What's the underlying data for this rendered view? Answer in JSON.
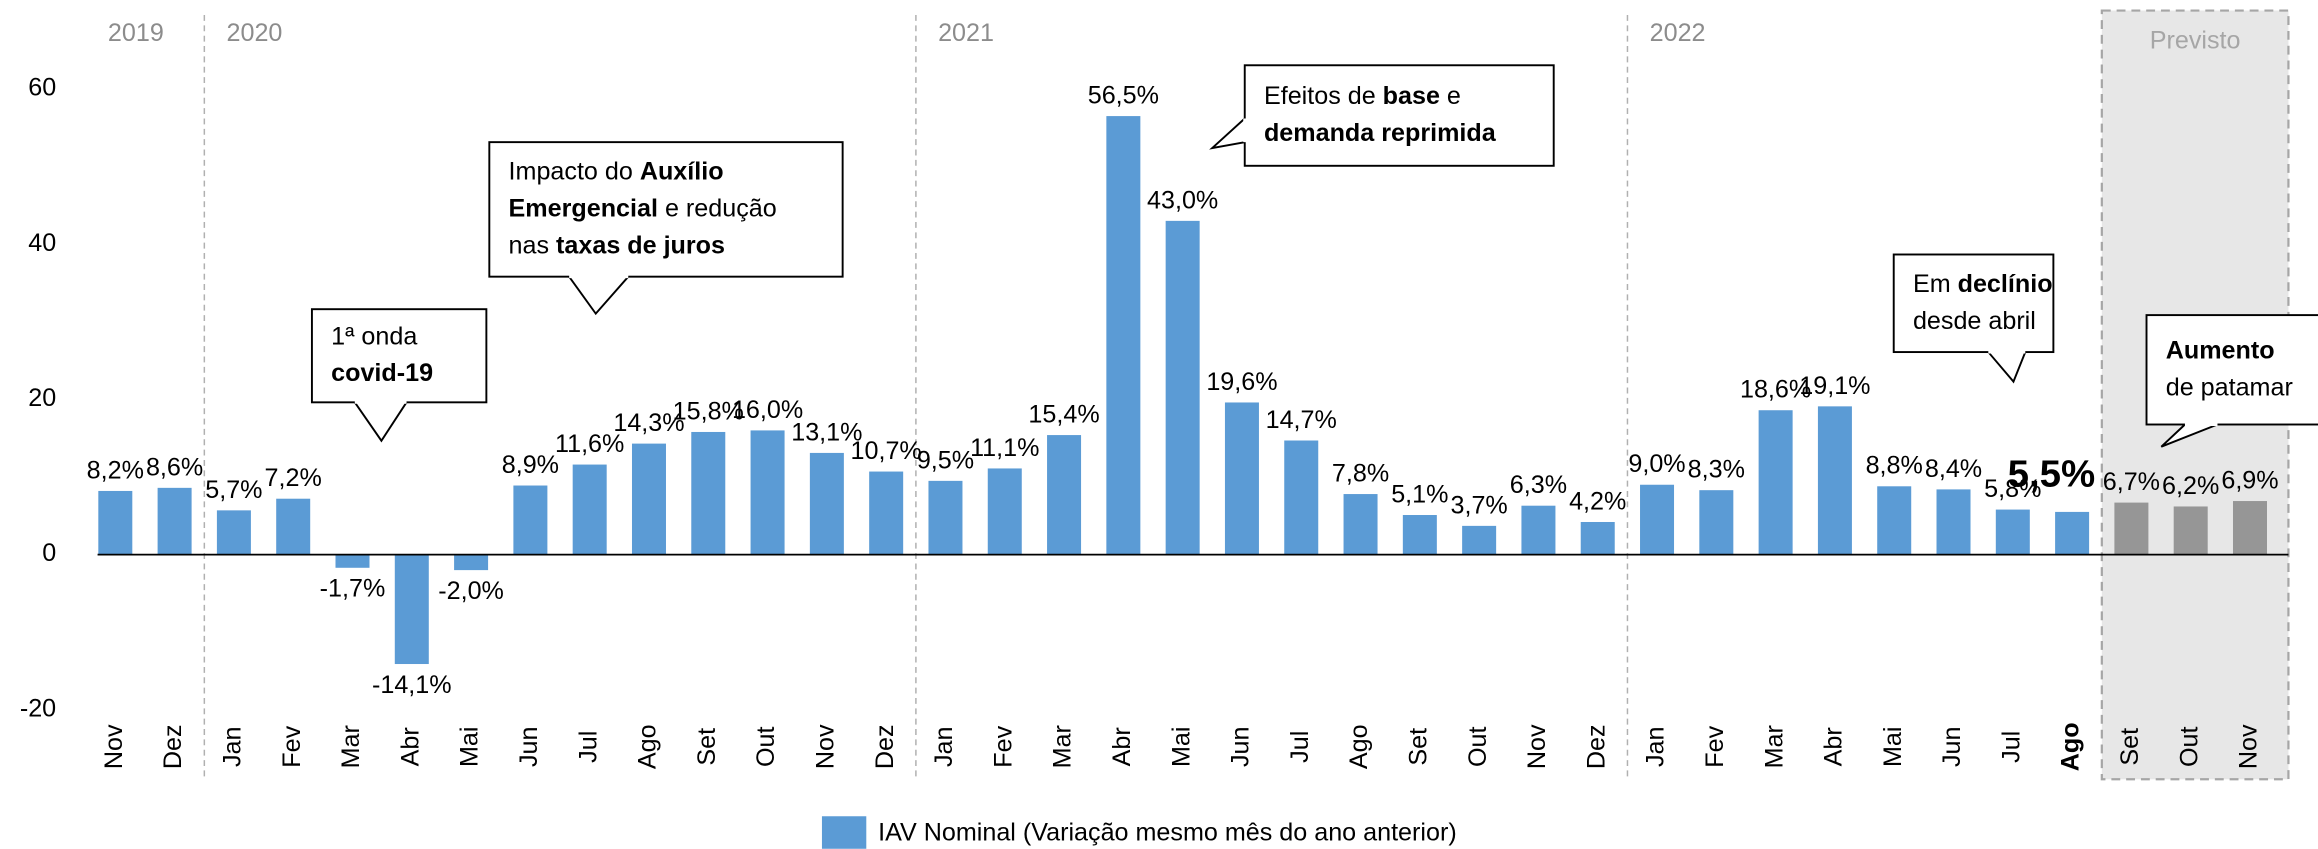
{
  "chart_data": {
    "type": "bar",
    "categories": [
      "Nov",
      "Dez",
      "Jan",
      "Fev",
      "Mar",
      "Abr",
      "Mai",
      "Jun",
      "Jul",
      "Ago",
      "Set",
      "Out",
      "Nov",
      "Dez",
      "Jan",
      "Fev",
      "Mar",
      "Abr",
      "Mai",
      "Jun",
      "Jul",
      "Ago",
      "Set",
      "Out",
      "Nov",
      "Dez",
      "Jan",
      "Fev",
      "Mar",
      "Abr",
      "Mai",
      "Jun",
      "Jul",
      "Ago",
      "Set",
      "Out",
      "Nov"
    ],
    "series": [
      {
        "name": "IAV Nominal (Variação mesmo mês do ano anterior)",
        "color": "#5b9bd5",
        "colors": [
          "#5b9bd5",
          "#5b9bd5",
          "#5b9bd5",
          "#5b9bd5",
          "#5b9bd5",
          "#5b9bd5",
          "#5b9bd5",
          "#5b9bd5",
          "#5b9bd5",
          "#5b9bd5",
          "#5b9bd5",
          "#5b9bd5",
          "#5b9bd5",
          "#5b9bd5",
          "#5b9bd5",
          "#5b9bd5",
          "#5b9bd5",
          "#5b9bd5",
          "#5b9bd5",
          "#5b9bd5",
          "#5b9bd5",
          "#5b9bd5",
          "#5b9bd5",
          "#5b9bd5",
          "#5b9bd5",
          "#5b9bd5",
          "#5b9bd5",
          "#5b9bd5",
          "#5b9bd5",
          "#5b9bd5",
          "#5b9bd5",
          "#5b9bd5",
          "#5b9bd5",
          "#5b9bd5",
          "#969696",
          "#969696",
          "#969696"
        ],
        "values": [
          8.2,
          8.6,
          5.7,
          7.2,
          -1.7,
          -14.1,
          -2.0,
          8.9,
          11.6,
          14.3,
          15.8,
          16.0,
          13.1,
          10.7,
          9.5,
          11.1,
          15.4,
          56.5,
          43.0,
          19.6,
          14.7,
          7.8,
          5.1,
          3.7,
          6.3,
          4.2,
          9.0,
          8.3,
          18.6,
          19.1,
          8.8,
          8.4,
          5.8,
          5.5,
          6.7,
          6.2,
          6.9
        ],
        "value_labels": [
          "8,2%",
          "8,6%",
          "5,7%",
          "7,2%",
          "-1,7%",
          "-14,1%",
          "-2,0%",
          "8,9%",
          "11,6%",
          "14,3%",
          "15,8%",
          "16,0%",
          "13,1%",
          "10,7%",
          "9,5%",
          "11,1%",
          "15,4%",
          "56,5%",
          "43,0%",
          "19,6%",
          "14,7%",
          "7,8%",
          "5,1%",
          "3,7%",
          "6,3%",
          "4,2%",
          "9,0%",
          "8,3%",
          "18,6%",
          "19,1%",
          "8,8%",
          "8,4%",
          "5,8%",
          "5,5%",
          "6,7%",
          "6,2%",
          "6,9%"
        ]
      }
    ],
    "highlight_index": 33,
    "ylim": [
      -20,
      60
    ],
    "yticks": [
      -20,
      0,
      20,
      40,
      60
    ],
    "grid": false,
    "legend": "bottom",
    "year_groups": [
      {
        "label": "2019",
        "start": 0
      },
      {
        "label": "2020",
        "start": 2
      },
      {
        "label": "2021",
        "start": 14
      },
      {
        "label": "2022",
        "start": 26
      }
    ],
    "forecast": {
      "label": "Previsto",
      "start": 34
    },
    "callouts": [
      {
        "lines": [
          [
            {
              "text": "1ª onda",
              "bold": false
            }
          ],
          [
            {
              "text": "covid-19",
              "bold": true
            }
          ]
        ]
      },
      {
        "lines": [
          [
            {
              "text": "Impacto do ",
              "bold": false
            },
            {
              "text": "Auxílio",
              "bold": true
            }
          ],
          [
            {
              "text": "Emergencial",
              "bold": true
            },
            {
              "text": " e redução",
              "bold": false
            }
          ],
          [
            {
              "text": "nas ",
              "bold": false
            },
            {
              "text": "taxas de juros",
              "bold": true
            }
          ]
        ]
      },
      {
        "lines": [
          [
            {
              "text": "Efeitos de ",
              "bold": false
            },
            {
              "text": "base",
              "bold": true
            },
            {
              "text": " e",
              "bold": false
            }
          ],
          [
            {
              "text": "demanda reprimida",
              "bold": true
            }
          ]
        ]
      },
      {
        "lines": [
          [
            {
              "text": "Em ",
              "bold": false
            },
            {
              "text": "declínio",
              "bold": true
            }
          ],
          [
            {
              "text": "desde abril",
              "bold": false
            }
          ]
        ]
      },
      {
        "lines": [
          [
            {
              "text": "Aumento",
              "bold": true
            }
          ],
          [
            {
              "text": "de patamar",
              "bold": false
            }
          ]
        ]
      }
    ]
  }
}
